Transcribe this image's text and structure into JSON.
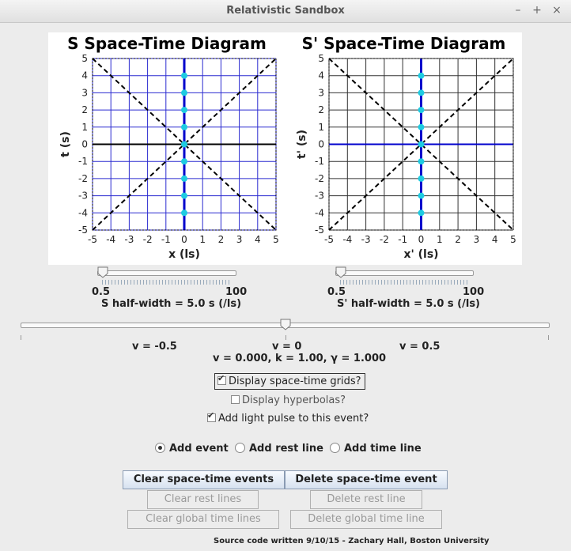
{
  "window": {
    "title": "Relativistic Sandbox",
    "controls": [
      "–",
      "+",
      "×"
    ]
  },
  "diagrams": {
    "s": {
      "title": "S Space-Time Diagram",
      "xlabel": "x (ls)",
      "ylabel": "t (s)"
    },
    "sp": {
      "title": "S' Space-Time Diagram",
      "xlabel": "x' (ls)",
      "ylabel": "t' (s)"
    }
  },
  "chart_data": [
    {
      "type": "scatter",
      "title": "S Space-Time Diagram",
      "xlabel": "x (ls)",
      "ylabel": "t (s)",
      "xlim": [
        -5,
        5
      ],
      "ylim": [
        -5,
        5
      ],
      "ticks": [
        -5,
        -4,
        -3,
        -2,
        -1,
        0,
        1,
        2,
        3,
        4,
        5
      ],
      "grid": true,
      "grid_color": "#2a2ad0",
      "light_lines": [
        [
          [
            -5,
            -5
          ],
          [
            5,
            5
          ]
        ],
        [
          [
            -5,
            5
          ],
          [
            5,
            -5
          ]
        ]
      ],
      "world_line_x": 0,
      "world_line_color": "#0000cc",
      "events": {
        "x": [
          0,
          0,
          0,
          0,
          0,
          0,
          0,
          0,
          0
        ],
        "t": [
          4,
          3,
          2,
          1,
          0,
          -1,
          -2,
          -3,
          -4
        ]
      },
      "event_color": "#1ecbe1"
    },
    {
      "type": "scatter",
      "title": "S' Space-Time Diagram",
      "xlabel": "x' (ls)",
      "ylabel": "t' (s)",
      "xlim": [
        -5,
        5
      ],
      "ylim": [
        -5,
        5
      ],
      "ticks": [
        -5,
        -4,
        -3,
        -2,
        -1,
        0,
        1,
        2,
        3,
        4,
        5
      ],
      "grid": true,
      "grid_color": "#333333",
      "light_lines": [
        [
          [
            -5,
            -5
          ],
          [
            5,
            5
          ]
        ],
        [
          [
            -5,
            5
          ],
          [
            5,
            -5
          ]
        ]
      ],
      "world_line_x": 0,
      "world_line_color": "#0000cc",
      "events": {
        "x": [
          0,
          0,
          0,
          0,
          0,
          0,
          0,
          0,
          0
        ],
        "t": [
          4,
          3,
          2,
          1,
          0,
          -1,
          -2,
          -3,
          -4
        ]
      },
      "event_color": "#1ecbe1"
    }
  ],
  "sliders": {
    "s_width": {
      "min": "0.5",
      "max": "100",
      "value": 5.0,
      "label": "S half-width = 5.0 s (/ls)"
    },
    "sp_width": {
      "min": "0.5",
      "max": "100",
      "value": 5.0,
      "label": "S' half-width = 5.0 s (/ls)"
    },
    "velocity": {
      "value": 0,
      "left": "v = -0.5",
      "center": "v = 0",
      "right": "v = 0.5",
      "status": "v =  0.000, k =  1.00, γ =  1.000"
    }
  },
  "options": {
    "grids": {
      "label": "Display space-time grids?",
      "checked": true
    },
    "hyperbolas": {
      "label": "Display hyperbolas?",
      "checked": false
    },
    "light": {
      "label": "Add light pulse to this event?",
      "checked": true
    }
  },
  "modes": {
    "event": "Add event",
    "rest": "Add rest line",
    "time": "Add time line",
    "selected": "event"
  },
  "buttons": {
    "clear_events": "Clear space-time events",
    "delete_event": "Delete space-time event",
    "clear_rest": "Clear rest lines",
    "delete_rest": "Delete rest line",
    "clear_time": "Clear global time lines",
    "delete_time": "Delete global time line"
  },
  "footer": "Source code written 9/10/15 - Zachary Hall, Boston University"
}
